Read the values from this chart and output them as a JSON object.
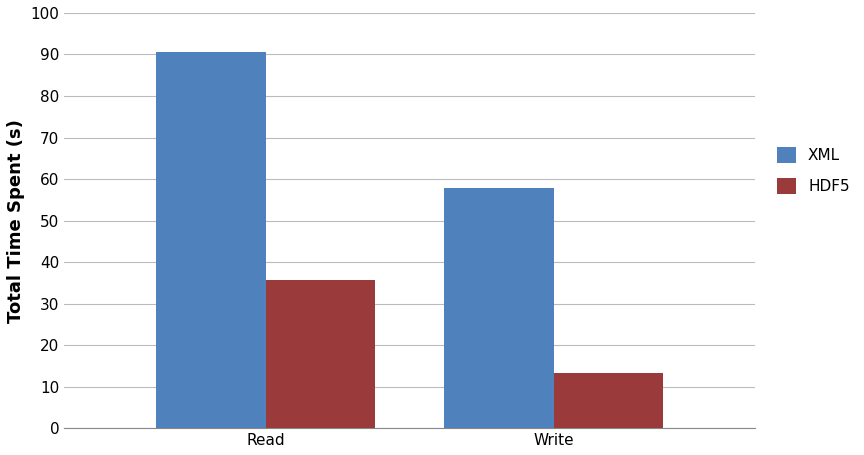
{
  "categories": [
    "Read",
    "Write"
  ],
  "xml_values": [
    90.5,
    57.8
  ],
  "hdf5_values": [
    35.8,
    13.2
  ],
  "xml_color": "#4F81BD",
  "hdf5_color": "#9B3A3A",
  "ylabel": "Total Time Spent (s)",
  "ylim": [
    0,
    100
  ],
  "yticks": [
    0,
    10,
    20,
    30,
    40,
    50,
    60,
    70,
    80,
    90,
    100
  ],
  "legend_labels": [
    "XML",
    "HDF5"
  ],
  "bar_width": 0.38,
  "background_color": "#FFFFFF",
  "grid_color": "#BBBBBB",
  "ylabel_fontsize": 13,
  "tick_fontsize": 11,
  "legend_fontsize": 11
}
